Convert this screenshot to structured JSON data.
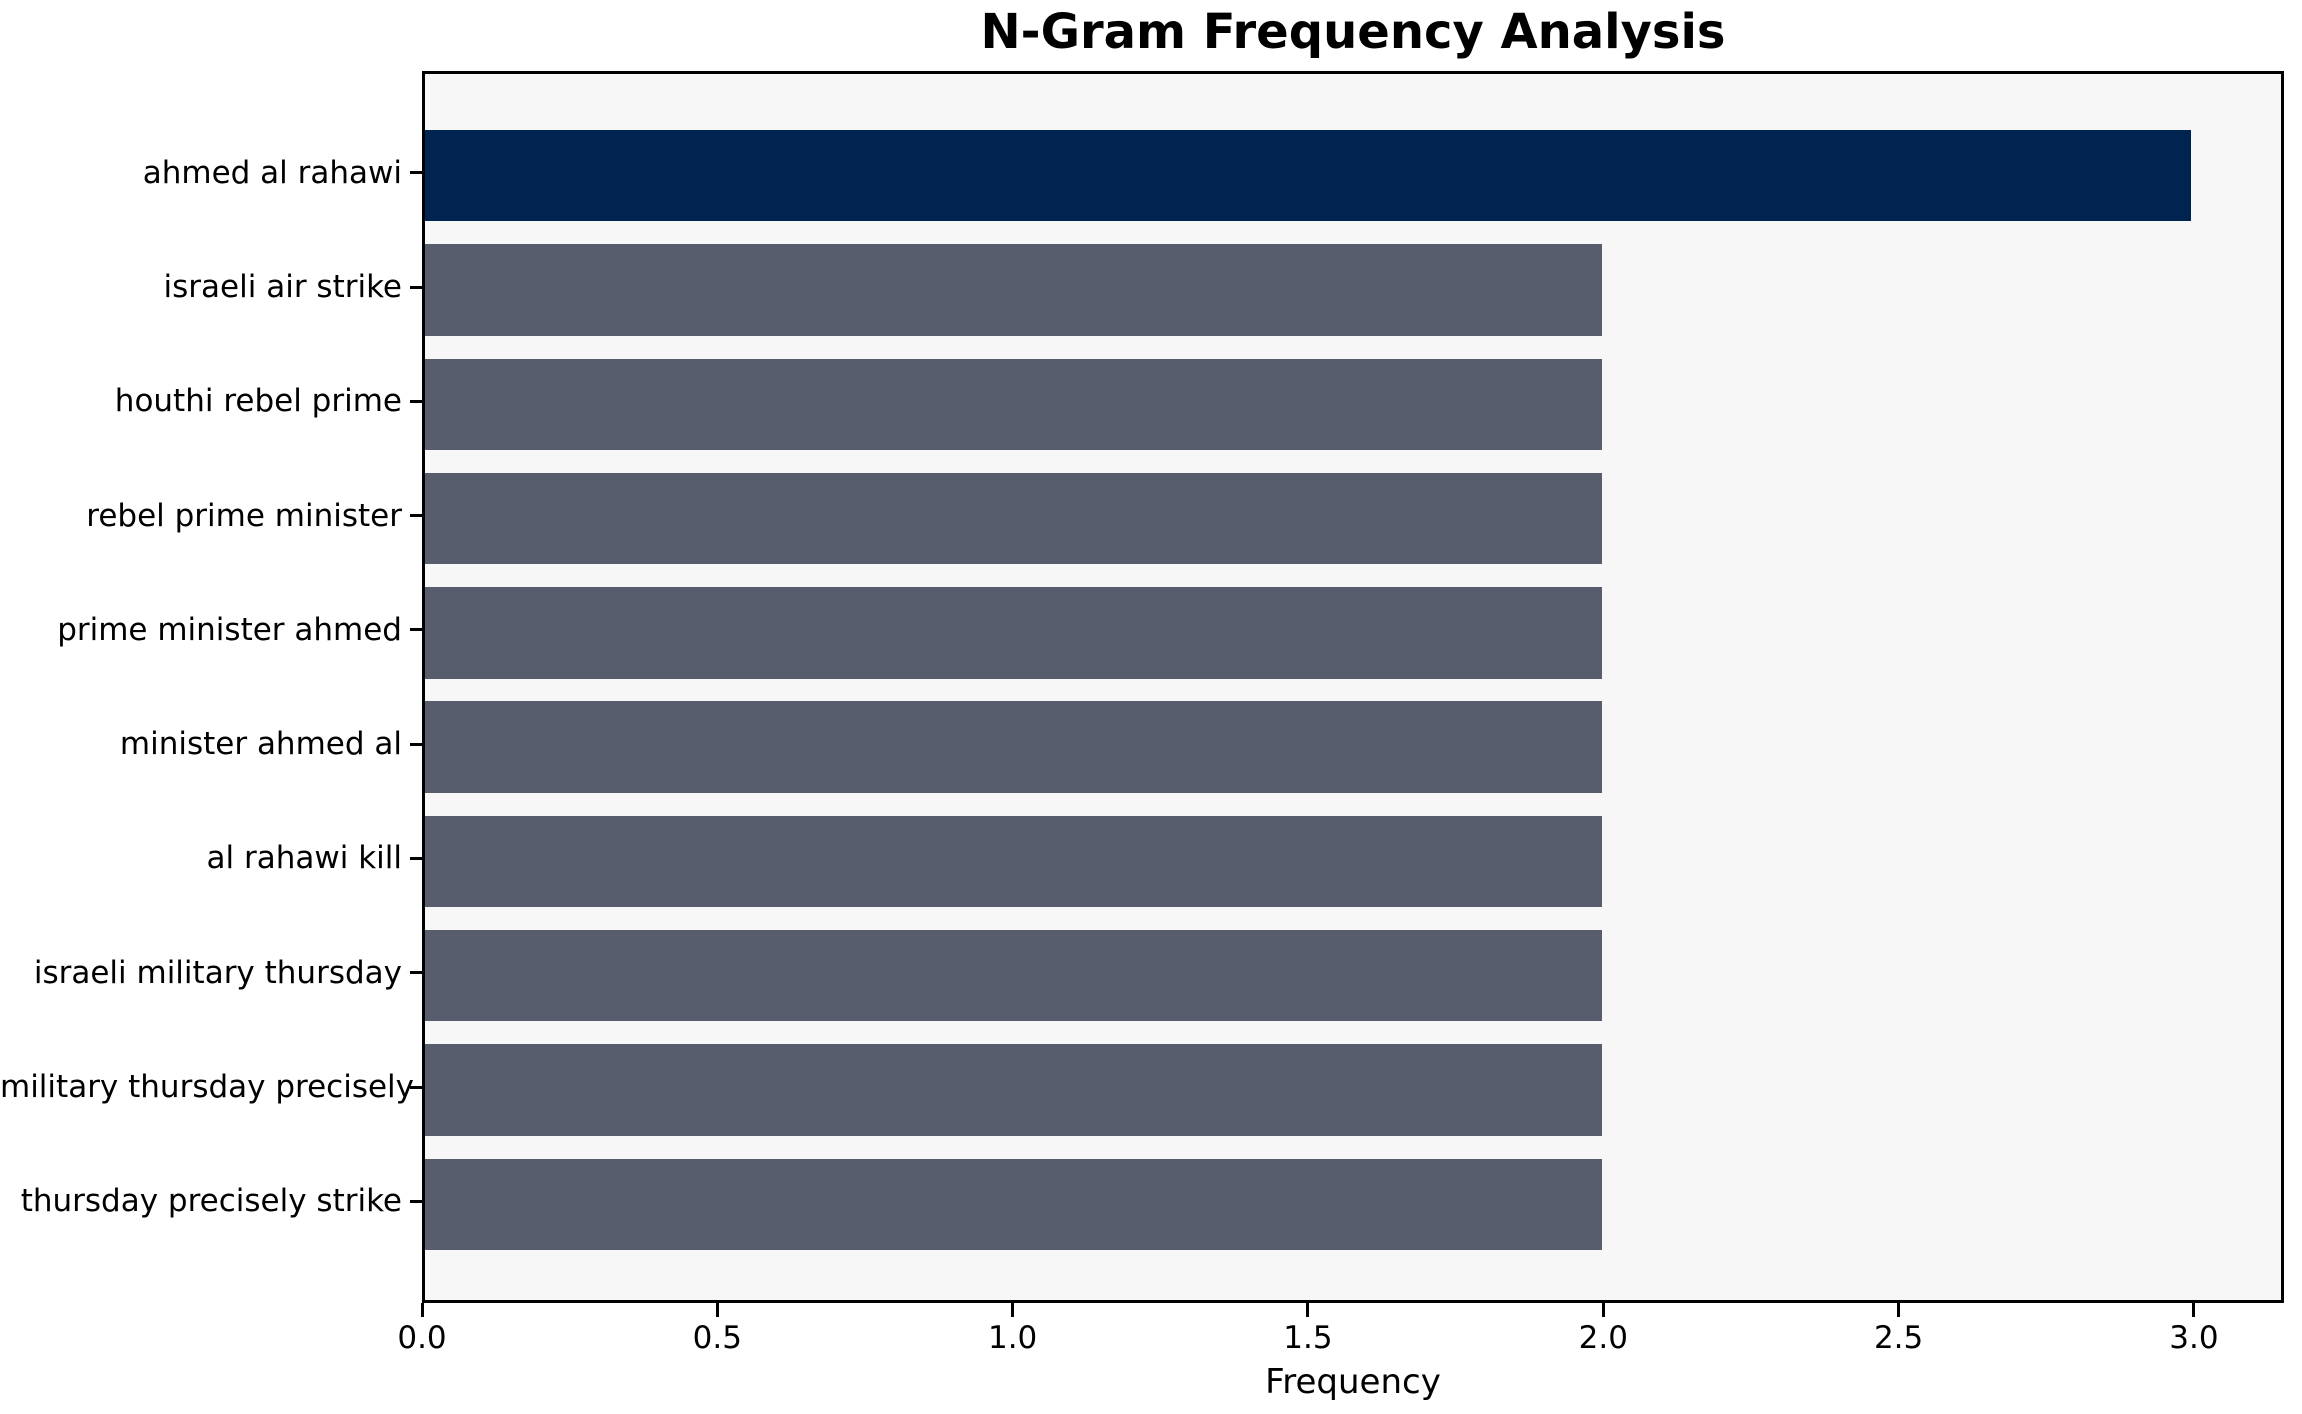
{
  "chart_data": {
    "type": "bar",
    "orientation": "horizontal",
    "title": "N-Gram Frequency Analysis",
    "xlabel": "Frequency",
    "ylabel": "",
    "categories": [
      "ahmed al rahawi",
      "israeli air strike",
      "houthi rebel prime",
      "rebel prime minister",
      "prime minister ahmed",
      "minister ahmed al",
      "al rahawi kill",
      "israeli military thursday",
      "military thursday precisely",
      "thursday precisely strike"
    ],
    "values": [
      3,
      2,
      2,
      2,
      2,
      2,
      2,
      2,
      2,
      2
    ],
    "bar_colors": [
      "#012350",
      "#575d6c",
      "#575d6c",
      "#575d6c",
      "#575d6c",
      "#575d6c",
      "#575d6c",
      "#575d6c",
      "#575d6c",
      "#575d6c"
    ],
    "x_ticks": [
      "0.0",
      "0.5",
      "1.0",
      "1.5",
      "2.0",
      "2.5",
      "3.0"
    ],
    "x_tick_values": [
      0,
      0.5,
      1,
      1.5,
      2,
      2.5,
      3
    ],
    "xlim": [
      0,
      3.15
    ],
    "grid": false,
    "legend": false,
    "colors": {
      "highlight_bar": "#012350",
      "default_bar": "#575d6c",
      "plot_background": "#f7f7f8",
      "figure_background": "#ffffff",
      "axis": "#000000",
      "text": "#000000"
    }
  }
}
